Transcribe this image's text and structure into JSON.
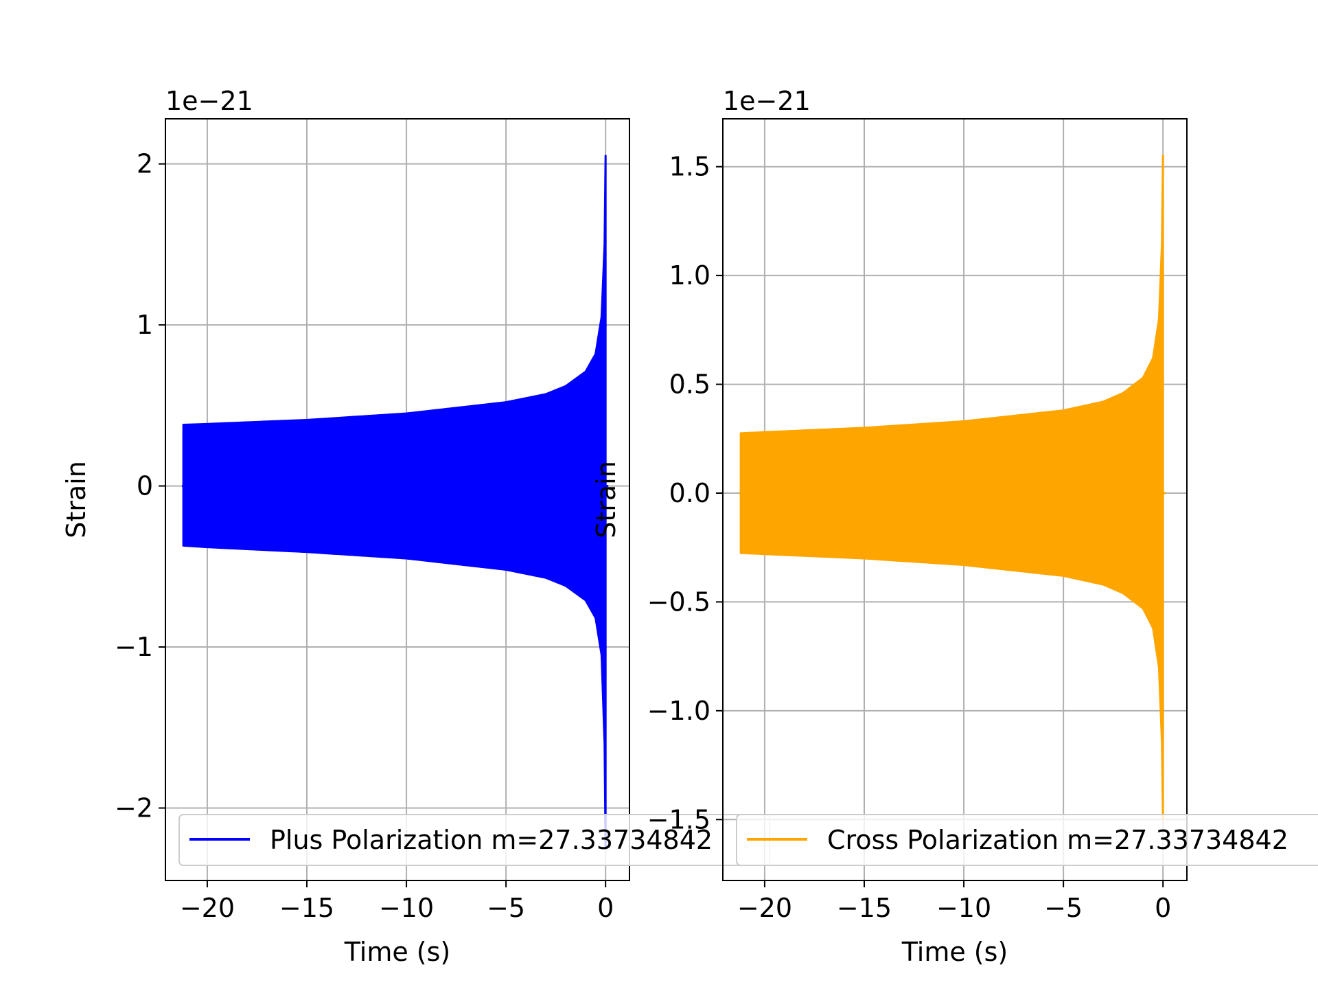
{
  "chart_data": [
    {
      "type": "line",
      "title": "",
      "offset_label": "1e−21",
      "xlabel": "Time (s)",
      "ylabel": "Strain",
      "xlim": [
        -22.1,
        1.2
      ],
      "ylim": [
        -2.45,
        2.28
      ],
      "xticks": [
        -20,
        -15,
        -10,
        -5,
        0
      ],
      "xtick_labels": [
        "−20",
        "−15",
        "−10",
        "−5",
        "0"
      ],
      "yticks": [
        -2,
        -1,
        0,
        1,
        2
      ],
      "ytick_labels": [
        "−2",
        "−1",
        "0",
        "1",
        "2"
      ],
      "grid": true,
      "legend_position": "lower center",
      "series": [
        {
          "name": "Plus Polarization m=27.33734842",
          "color": "#0000ff",
          "t_start": -21.2,
          "t_end": 0.0,
          "envelope": {
            "t": [
              -21.2,
              -20,
              -15,
              -10,
              -5,
              -3,
              -2,
              -1,
              -0.5,
              -0.2,
              -0.05,
              0.0
            ],
            "upper": [
              0.38,
              0.385,
              0.41,
              0.45,
              0.52,
              0.57,
              0.62,
              0.71,
              0.82,
              1.05,
              1.5,
              2.05
            ],
            "lower": [
              -0.37,
              -0.38,
              -0.41,
              -0.45,
              -0.52,
              -0.57,
              -0.62,
              -0.71,
              -0.82,
              -1.05,
              -1.6,
              -2.25
            ]
          }
        }
      ]
    },
    {
      "type": "line",
      "title": "",
      "offset_label": "1e−21",
      "xlabel": "Time (s)",
      "ylabel": "Strain",
      "xlim": [
        -22.1,
        1.2
      ],
      "ylim": [
        -1.78,
        1.72
      ],
      "xticks": [
        -20,
        -15,
        -10,
        -5,
        0
      ],
      "xtick_labels": [
        "−20",
        "−15",
        "−10",
        "−5",
        "0"
      ],
      "yticks": [
        -1.5,
        -1.0,
        -0.5,
        0.0,
        0.5,
        1.0,
        1.5
      ],
      "ytick_labels": [
        "−1.5",
        "−1.0",
        "−0.5",
        "0.0",
        "0.5",
        "1.0",
        "1.5"
      ],
      "grid": true,
      "legend_position": "lower center",
      "series": [
        {
          "name": "Cross Polarization m=27.33734842",
          "color": "#ffa500",
          "t_start": -21.2,
          "t_end": 0.0,
          "envelope": {
            "t": [
              -21.2,
              -20,
              -15,
              -10,
              -5,
              -3,
              -2,
              -1,
              -0.5,
              -0.2,
              -0.05,
              0.0
            ],
            "upper": [
              0.275,
              0.28,
              0.3,
              0.33,
              0.38,
              0.42,
              0.46,
              0.53,
              0.62,
              0.8,
              1.15,
              1.55
            ],
            "lower": [
              -0.275,
              -0.28,
              -0.3,
              -0.33,
              -0.38,
              -0.42,
              -0.46,
              -0.53,
              -0.62,
              -0.8,
              -1.15,
              -1.5
            ]
          }
        }
      ]
    }
  ]
}
